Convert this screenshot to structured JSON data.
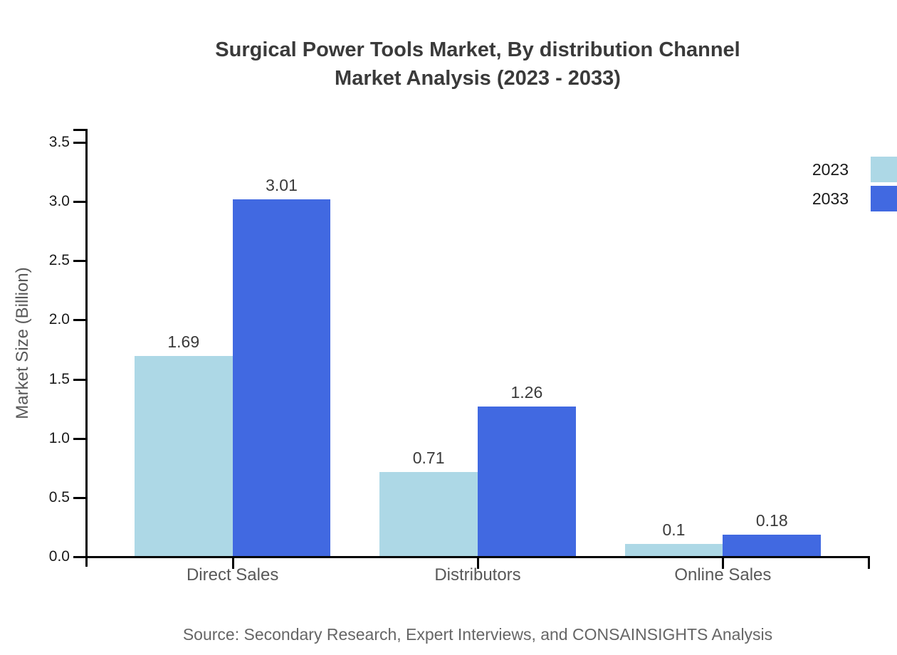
{
  "title": {
    "line1": "Surgical Power Tools Market, By distribution Channel",
    "line2": "Market Analysis (2023 - 2033)"
  },
  "ylabel": "Market Size (Billion)",
  "source": "Source: Secondary Research, Expert Interviews, and CONSAINSIGHTS Analysis",
  "legend": [
    {
      "label": "2023",
      "color": "#ADD8E6"
    },
    {
      "label": "2033",
      "color": "#4169E1"
    }
  ],
  "colors": {
    "series_2023": "#ADD8E6",
    "series_2033": "#4169E1",
    "axis": "#000000",
    "title_text": "#3a3a3a",
    "axis_text": "#1a1a1a",
    "muted_text": "#595959",
    "source_text": "#666666",
    "background": "#ffffff"
  },
  "chart_data": {
    "type": "bar",
    "title": "Surgical Power Tools Market, By distribution Channel Market Analysis (2023 - 2033)",
    "categories": [
      "Direct Sales",
      "Distributors",
      "Online Sales"
    ],
    "series": [
      {
        "name": "2023",
        "color": "#ADD8E6",
        "values": [
          1.69,
          0.71,
          0.1
        ]
      },
      {
        "name": "2033",
        "color": "#4169E1",
        "values": [
          3.01,
          1.26,
          0.18
        ]
      }
    ],
    "value_labels": {
      "2023": [
        "1.69",
        "0.71",
        "0.1"
      ],
      "2033": [
        "3.01",
        "1.26",
        "0.18"
      ]
    },
    "xlabel": "",
    "ylabel": "Market Size (Billion)",
    "ylim": [
      0,
      3.5
    ],
    "yticks": [
      0.0,
      0.5,
      1.0,
      1.5,
      2.0,
      2.5,
      3.0,
      3.5
    ],
    "ytick_labels": [
      "0.0",
      "0.5",
      "1.0",
      "1.5",
      "2.0",
      "2.5",
      "3.0",
      "3.5"
    ],
    "grid": false,
    "legend_position": "upper right",
    "show_value_labels": true
  }
}
